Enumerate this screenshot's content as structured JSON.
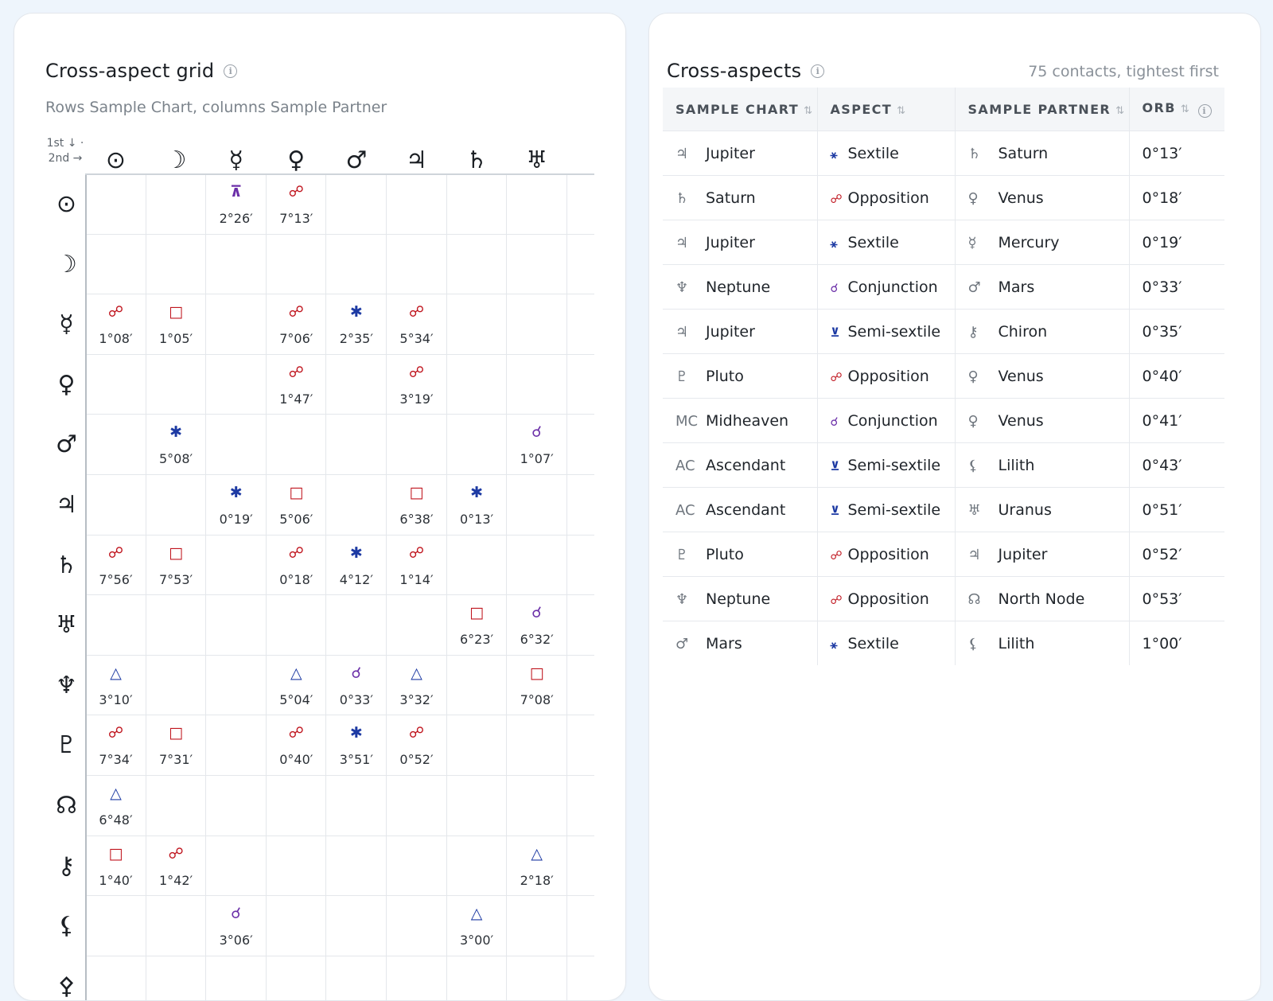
{
  "grid": {
    "title": "Cross-aspect grid",
    "info_icon": "info-icon",
    "subtitle": "Rows Sample Chart, columns Sample Partner",
    "corner_top": "1st ↓ ·",
    "corner_bottom": "2nd →",
    "columns": [
      "⊙",
      "☽",
      "☿",
      "♀",
      "♂",
      "♃",
      "♄",
      "♅"
    ],
    "rows": [
      "⊙",
      "☽",
      "☿",
      "♀",
      "♂",
      "♃",
      "♄",
      "♅",
      "♆",
      "♇",
      "☊",
      "⚷",
      "⚸",
      "⚴"
    ],
    "colors": {
      "opposition": "#c0161f",
      "square": "#c0161f",
      "sextile": "#1d3aa3",
      "trine": "#1d3aa3",
      "conjunction": "#6b2fa8",
      "quincunx": "#6b2fa8"
    },
    "cells": [
      {
        "r": 0,
        "c": 2,
        "glyph": "⊼",
        "aspect": "quincunx",
        "orb": "2°26′"
      },
      {
        "r": 0,
        "c": 3,
        "glyph": "☍",
        "aspect": "opposition",
        "orb": "7°13′"
      },
      {
        "r": 2,
        "c": 0,
        "glyph": "☍",
        "aspect": "opposition",
        "orb": "1°08′"
      },
      {
        "r": 2,
        "c": 1,
        "glyph": "□",
        "aspect": "square",
        "orb": "1°05′"
      },
      {
        "r": 2,
        "c": 3,
        "glyph": "☍",
        "aspect": "opposition",
        "orb": "7°06′"
      },
      {
        "r": 2,
        "c": 4,
        "glyph": "✱",
        "aspect": "sextile",
        "orb": "2°35′"
      },
      {
        "r": 2,
        "c": 5,
        "glyph": "☍",
        "aspect": "opposition",
        "orb": "5°34′"
      },
      {
        "r": 3,
        "c": 3,
        "glyph": "☍",
        "aspect": "opposition",
        "orb": "1°47′"
      },
      {
        "r": 3,
        "c": 5,
        "glyph": "☍",
        "aspect": "opposition",
        "orb": "3°19′"
      },
      {
        "r": 4,
        "c": 1,
        "glyph": "✱",
        "aspect": "sextile",
        "orb": "5°08′"
      },
      {
        "r": 4,
        "c": 7,
        "glyph": "☌",
        "aspect": "conjunction",
        "orb": "1°07′"
      },
      {
        "r": 5,
        "c": 2,
        "glyph": "✱",
        "aspect": "sextile",
        "orb": "0°19′"
      },
      {
        "r": 5,
        "c": 3,
        "glyph": "□",
        "aspect": "square",
        "orb": "5°06′"
      },
      {
        "r": 5,
        "c": 5,
        "glyph": "□",
        "aspect": "square",
        "orb": "6°38′"
      },
      {
        "r": 5,
        "c": 6,
        "glyph": "✱",
        "aspect": "sextile",
        "orb": "0°13′"
      },
      {
        "r": 6,
        "c": 0,
        "glyph": "☍",
        "aspect": "opposition",
        "orb": "7°56′"
      },
      {
        "r": 6,
        "c": 1,
        "glyph": "□",
        "aspect": "square",
        "orb": "7°53′"
      },
      {
        "r": 6,
        "c": 3,
        "glyph": "☍",
        "aspect": "opposition",
        "orb": "0°18′"
      },
      {
        "r": 6,
        "c": 4,
        "glyph": "✱",
        "aspect": "sextile",
        "orb": "4°12′"
      },
      {
        "r": 6,
        "c": 5,
        "glyph": "☍",
        "aspect": "opposition",
        "orb": "1°14′"
      },
      {
        "r": 7,
        "c": 6,
        "glyph": "□",
        "aspect": "square",
        "orb": "6°23′"
      },
      {
        "r": 7,
        "c": 7,
        "glyph": "☌",
        "aspect": "conjunction",
        "orb": "6°32′"
      },
      {
        "r": 8,
        "c": 0,
        "glyph": "△",
        "aspect": "trine",
        "orb": "3°10′"
      },
      {
        "r": 8,
        "c": 3,
        "glyph": "△",
        "aspect": "trine",
        "orb": "5°04′"
      },
      {
        "r": 8,
        "c": 4,
        "glyph": "☌",
        "aspect": "conjunction",
        "orb": "0°33′"
      },
      {
        "r": 8,
        "c": 5,
        "glyph": "△",
        "aspect": "trine",
        "orb": "3°32′"
      },
      {
        "r": 8,
        "c": 7,
        "glyph": "□",
        "aspect": "square",
        "orb": "7°08′"
      },
      {
        "r": 9,
        "c": 0,
        "glyph": "☍",
        "aspect": "opposition",
        "orb": "7°34′"
      },
      {
        "r": 9,
        "c": 1,
        "glyph": "□",
        "aspect": "square",
        "orb": "7°31′"
      },
      {
        "r": 9,
        "c": 3,
        "glyph": "☍",
        "aspect": "opposition",
        "orb": "0°40′"
      },
      {
        "r": 9,
        "c": 4,
        "glyph": "✱",
        "aspect": "sextile",
        "orb": "3°51′"
      },
      {
        "r": 9,
        "c": 5,
        "glyph": "☍",
        "aspect": "opposition",
        "orb": "0°52′"
      },
      {
        "r": 10,
        "c": 0,
        "glyph": "△",
        "aspect": "trine",
        "orb": "6°48′"
      },
      {
        "r": 11,
        "c": 0,
        "glyph": "□",
        "aspect": "square",
        "orb": "1°40′"
      },
      {
        "r": 11,
        "c": 1,
        "glyph": "☍",
        "aspect": "opposition",
        "orb": "1°42′"
      },
      {
        "r": 11,
        "c": 7,
        "glyph": "△",
        "aspect": "trine",
        "orb": "2°18′"
      },
      {
        "r": 12,
        "c": 2,
        "glyph": "☌",
        "aspect": "conjunction",
        "orb": "3°06′"
      },
      {
        "r": 12,
        "c": 6,
        "glyph": "△",
        "aspect": "trine",
        "orb": "3°00′"
      }
    ]
  },
  "aspects": {
    "title": "Cross-aspects",
    "info_icon": "info-icon",
    "meta": "75 contacts, tightest first",
    "columns": [
      {
        "label": "SAMPLE CHART",
        "sort_icon": "⇅"
      },
      {
        "label": "ASPECT",
        "sort_icon": "⇅"
      },
      {
        "label": "SAMPLE PARTNER",
        "sort_icon": "⇅"
      },
      {
        "label": "ORB",
        "sort_icon": "⇅",
        "info_icon": "info-icon"
      }
    ],
    "rows": [
      {
        "sym1": "♃",
        "p1": "Jupiter",
        "asym": "⚹",
        "aspect": "Sextile",
        "color": "#1d3aa3",
        "sym2": "♄",
        "p2": "Saturn",
        "orb": "0°13′"
      },
      {
        "sym1": "♄",
        "p1": "Saturn",
        "asym": "☍",
        "aspect": "Opposition",
        "color": "#c0161f",
        "sym2": "♀",
        "p2": "Venus",
        "orb": "0°18′"
      },
      {
        "sym1": "♃",
        "p1": "Jupiter",
        "asym": "⚹",
        "aspect": "Sextile",
        "color": "#1d3aa3",
        "sym2": "☿",
        "p2": "Mercury",
        "orb": "0°19′"
      },
      {
        "sym1": "♆",
        "p1": "Neptune",
        "asym": "☌",
        "aspect": "Conjunction",
        "color": "#6b2fa8",
        "sym2": "♂",
        "p2": "Mars",
        "orb": "0°33′"
      },
      {
        "sym1": "♃",
        "p1": "Jupiter",
        "asym": "⊻",
        "aspect": "Semi-sextile",
        "color": "#1d3aa3",
        "sym2": "⚷",
        "p2": "Chiron",
        "orb": "0°35′"
      },
      {
        "sym1": "♇",
        "p1": "Pluto",
        "asym": "☍",
        "aspect": "Opposition",
        "color": "#c0161f",
        "sym2": "♀",
        "p2": "Venus",
        "orb": "0°40′"
      },
      {
        "sym1": "MC",
        "p1": "Midheaven",
        "asym": "☌",
        "aspect": "Conjunction",
        "color": "#6b2fa8",
        "sym2": "♀",
        "p2": "Venus",
        "orb": "0°41′"
      },
      {
        "sym1": "AC",
        "p1": "Ascendant",
        "asym": "⊻",
        "aspect": "Semi-sextile",
        "color": "#1d3aa3",
        "sym2": "⚸",
        "p2": "Lilith",
        "orb": "0°43′"
      },
      {
        "sym1": "AC",
        "p1": "Ascendant",
        "asym": "⊻",
        "aspect": "Semi-sextile",
        "color": "#1d3aa3",
        "sym2": "♅",
        "p2": "Uranus",
        "orb": "0°51′"
      },
      {
        "sym1": "♇",
        "p1": "Pluto",
        "asym": "☍",
        "aspect": "Opposition",
        "color": "#c0161f",
        "sym2": "♃",
        "p2": "Jupiter",
        "orb": "0°52′"
      },
      {
        "sym1": "♆",
        "p1": "Neptune",
        "asym": "☍",
        "aspect": "Opposition",
        "color": "#c0161f",
        "sym2": "☊",
        "p2": "North Node",
        "orb": "0°53′"
      },
      {
        "sym1": "♂",
        "p1": "Mars",
        "asym": "⚹",
        "aspect": "Sextile",
        "color": "#1d3aa3",
        "sym2": "⚸",
        "p2": "Lilith",
        "orb": "1°00′"
      }
    ]
  }
}
